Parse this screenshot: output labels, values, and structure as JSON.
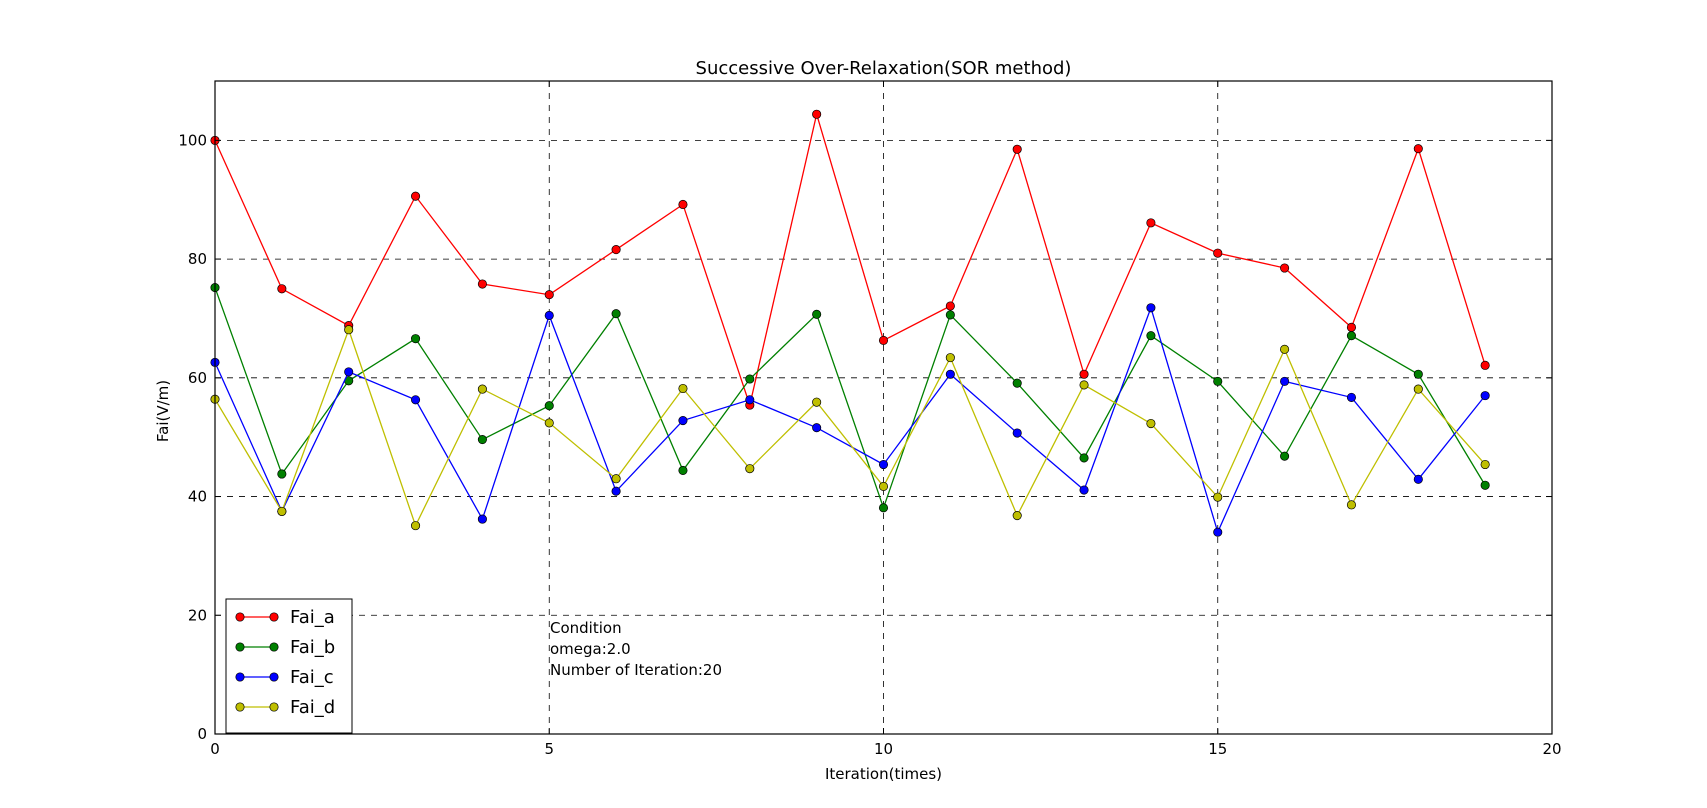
{
  "chart_data": {
    "type": "line",
    "title": "Successive Over-Relaxation(SOR method)",
    "xlabel": "Iteration(times)",
    "ylabel": "Fai(V/m)",
    "xlim": [
      0,
      20
    ],
    "ylim": [
      0,
      110
    ],
    "x_ticks": [
      0,
      5,
      10,
      15,
      20
    ],
    "y_ticks": [
      0,
      20,
      40,
      60,
      80,
      100
    ],
    "grid": "dashed",
    "legend_position": "bottom-left",
    "x": [
      0,
      1,
      2,
      3,
      4,
      5,
      6,
      7,
      8,
      9,
      10,
      11,
      12,
      13,
      14,
      15,
      16,
      17,
      18,
      19
    ],
    "series": [
      {
        "name": "Fai_a",
        "color": "#ff0000",
        "values": [
          100,
          75,
          68.8,
          90.6,
          75.8,
          74,
          81.6,
          89.2,
          55.4,
          104.4,
          66.3,
          72.1,
          98.5,
          60.6,
          86.1,
          81,
          78.5,
          68.5,
          98.6,
          62.1
        ]
      },
      {
        "name": "Fai_b",
        "color": "#008000",
        "values": [
          75.2,
          43.8,
          59.5,
          66.6,
          49.6,
          55.3,
          70.8,
          44.4,
          59.8,
          70.7,
          38.1,
          70.6,
          59.1,
          46.5,
          67.1,
          59.4,
          46.8,
          67.1,
          60.6,
          41.9
        ]
      },
      {
        "name": "Fai_c",
        "color": "#0000ff",
        "values": [
          62.6,
          37.5,
          61,
          56.3,
          36.2,
          70.5,
          40.9,
          52.8,
          56.3,
          51.6,
          45.4,
          60.6,
          50.7,
          41.1,
          71.8,
          34,
          59.4,
          56.7,
          42.9,
          57
        ]
      },
      {
        "name": "Fai_d",
        "color": "#bfbf00",
        "values": [
          56.4,
          37.5,
          68.1,
          35.1,
          58.1,
          52.4,
          43,
          58.2,
          44.7,
          55.9,
          41.7,
          63.4,
          36.8,
          58.8,
          52.3,
          39.9,
          64.8,
          38.6,
          58.1,
          45.4
        ]
      }
    ],
    "annotation": {
      "lines": [
        "Condition",
        "omega:2.0",
        "Number of Iteration:20"
      ]
    }
  }
}
